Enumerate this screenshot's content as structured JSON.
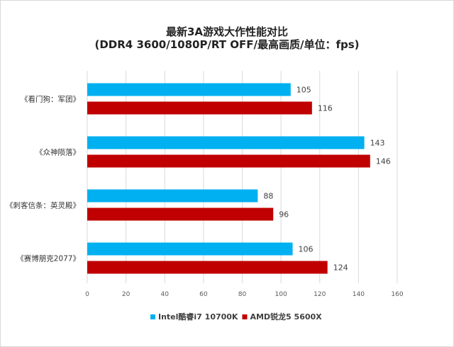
{
  "chart_data": {
    "type": "bar",
    "orientation": "horizontal",
    "title": "最新3A游戏大作性能对比",
    "subtitle": "(DDR4 3600/1080P/RT OFF/最高画质/单位：fps)",
    "categories": [
      "《看门狗：军团》",
      "《众神陨落》",
      "《刺客信条：英灵殿》",
      "《赛博朋克2077》"
    ],
    "series": [
      {
        "name": "Intel酷睿i7 10700K",
        "color": "#00b0f0",
        "values": [
          105,
          143,
          88,
          106
        ]
      },
      {
        "name": "AMD锐龙5 5600X",
        "color": "#c00000",
        "values": [
          116,
          146,
          96,
          124
        ]
      }
    ],
    "xlim": [
      0,
      160
    ],
    "xticks": [
      0,
      20,
      40,
      60,
      80,
      100,
      120,
      140,
      160
    ],
    "grid": true,
    "legend": "bottom",
    "data_labels": true
  }
}
